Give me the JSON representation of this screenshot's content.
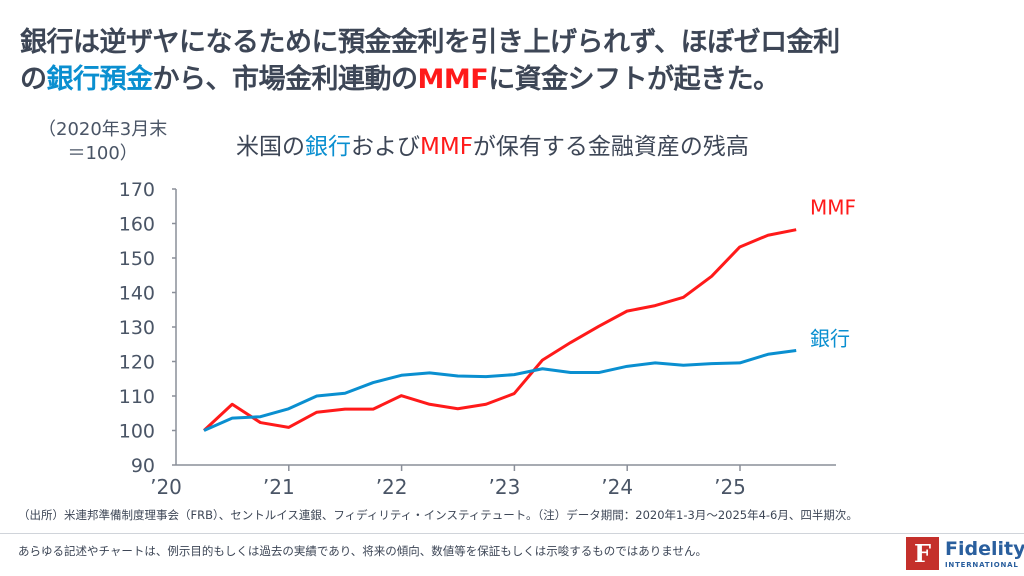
{
  "headline": {
    "line1": "銀行は逆ザヤになるために預金金利を引き上げられず、ほぼゼロ金利",
    "line2_a": "の",
    "line2_b": "銀行預金",
    "line2_c": "から、市場金利連動の",
    "line2_d": "MMF",
    "line2_e": "に資金シフトが起きた。"
  },
  "chart_data": {
    "type": "line",
    "title_parts": [
      "米国の",
      "銀行",
      "および",
      "MMF",
      "が保有する金融資産の残高"
    ],
    "ylabel_line1": "（2020年3月末",
    "ylabel_line2": "＝100）",
    "ylim": [
      90,
      170
    ],
    "yticks": [
      "90",
      "100",
      "110",
      "120",
      "130",
      "140",
      "150",
      "160",
      "170"
    ],
    "xticks": [
      "’20",
      "’21",
      "’22",
      "’23",
      "’24",
      "’25"
    ],
    "x": [
      "2020Q1",
      "2020Q2",
      "2020Q3",
      "2020Q4",
      "2021Q1",
      "2021Q2",
      "2021Q3",
      "2021Q4",
      "2022Q1",
      "2022Q2",
      "2022Q3",
      "2022Q4",
      "2023Q1",
      "2023Q2",
      "2023Q3",
      "2023Q4",
      "2024Q1",
      "2024Q2",
      "2024Q3",
      "2024Q4",
      "2025Q1",
      "2025Q2"
    ],
    "grid": false,
    "series": [
      {
        "name": "MMF",
        "color": "#ff1a1a",
        "values": [
          100,
          107.6,
          102.3,
          100.9,
          105.3,
          106.2,
          106.2,
          110.1,
          107.6,
          106.3,
          107.6,
          110.7,
          120.4,
          125.5,
          130.2,
          134.6,
          136.2,
          138.6,
          144.7,
          153.2,
          156.6,
          158.2
        ]
      },
      {
        "name": "銀行",
        "color": "#0a8fd0",
        "values": [
          100,
          103.6,
          104.0,
          106.3,
          110.0,
          110.8,
          113.9,
          116.0,
          116.7,
          115.8,
          115.6,
          116.2,
          117.9,
          116.8,
          116.8,
          118.6,
          119.6,
          118.9,
          119.4,
          119.6,
          122.1,
          123.2
        ]
      }
    ]
  },
  "footer": {
    "source": "（出所）米連邦準備制度理事会（FRB）、セントルイス連銀、フィディリティ・インスティテュート。（注）データ期間：2020年1-3月～2025年4-6月、四半期次。",
    "disclaimer": "あらゆる記述やチャートは、例示目的もしくは過去の実績であり、将来の傾向、数値等を保証もしくは示唆するものではありません。"
  },
  "logo": {
    "mark": "F",
    "name": "Fidelity",
    "sub": "INTERNATIONAL"
  }
}
